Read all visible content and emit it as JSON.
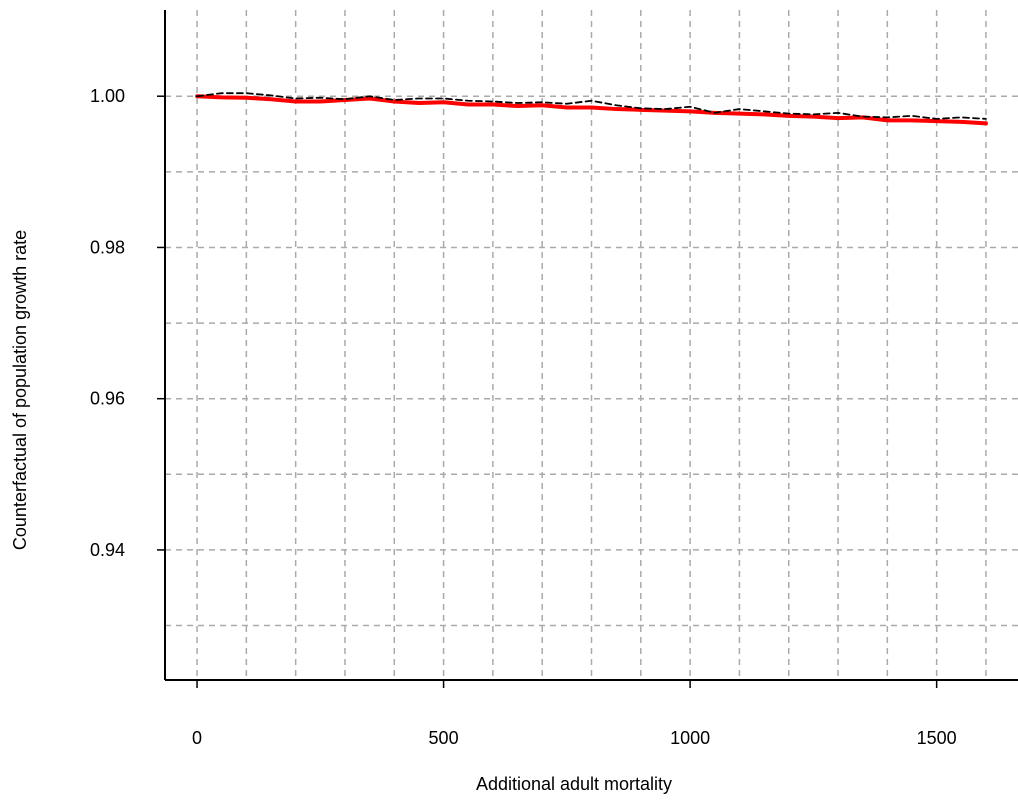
{
  "chart_data": {
    "type": "line",
    "title": "",
    "xlabel": "Additional adult mortality",
    "ylabel": "Counterfactual of population growth rate",
    "xlim": [
      -65,
      1665
    ],
    "ylim": [
      0.9228,
      1.0114
    ],
    "x_ticks": [
      0,
      500,
      1000,
      1500
    ],
    "x_tick_labels": [
      "0",
      "500",
      "1000",
      "1500"
    ],
    "y_ticks": [
      0.94,
      0.96,
      0.98,
      1.0
    ],
    "y_tick_labels": [
      "0.94",
      "0.96",
      "0.98",
      "1.00"
    ],
    "x_grid": [
      0,
      100,
      200,
      300,
      400,
      500,
      600,
      700,
      800,
      900,
      1000,
      1100,
      1200,
      1300,
      1400,
      1500,
      1600
    ],
    "y_grid": [
      0.93,
      0.94,
      0.95,
      0.96,
      0.97,
      0.98,
      0.99,
      1.0
    ],
    "grid": true,
    "x": [
      0,
      50,
      100,
      150,
      200,
      250,
      300,
      350,
      400,
      450,
      500,
      550,
      600,
      650,
      700,
      750,
      800,
      850,
      900,
      950,
      1000,
      1050,
      1100,
      1150,
      1200,
      1250,
      1300,
      1350,
      1400,
      1450,
      1500,
      1550,
      1600
    ],
    "series": [
      {
        "color": "#ff0000",
        "style": "solid",
        "values": [
          1.0,
          0.99985,
          0.9998,
          0.9996,
          0.9993,
          0.9993,
          0.9995,
          0.9997,
          0.9993,
          0.9991,
          0.9992,
          0.9989,
          0.9989,
          0.9987,
          0.9988,
          0.9985,
          0.9985,
          0.9983,
          0.9982,
          0.9981,
          0.998,
          0.9978,
          0.9977,
          0.9976,
          0.9974,
          0.9973,
          0.9971,
          0.9972,
          0.9968,
          0.9968,
          0.9967,
          0.9966,
          0.9964
        ]
      },
      {
        "color": "#000000",
        "style": "dashed",
        "values": [
          1.0,
          1.0004,
          1.0004,
          1.0001,
          0.9997,
          0.9998,
          0.9996,
          1.0,
          0.9995,
          0.9997,
          0.9997,
          0.9994,
          0.9993,
          0.9991,
          0.9992,
          0.999,
          0.9994,
          0.9988,
          0.9984,
          0.9983,
          0.9986,
          0.9978,
          0.9983,
          0.998,
          0.9977,
          0.9976,
          0.9978,
          0.9973,
          0.9972,
          0.9974,
          0.997,
          0.9972,
          0.997
        ]
      }
    ]
  }
}
